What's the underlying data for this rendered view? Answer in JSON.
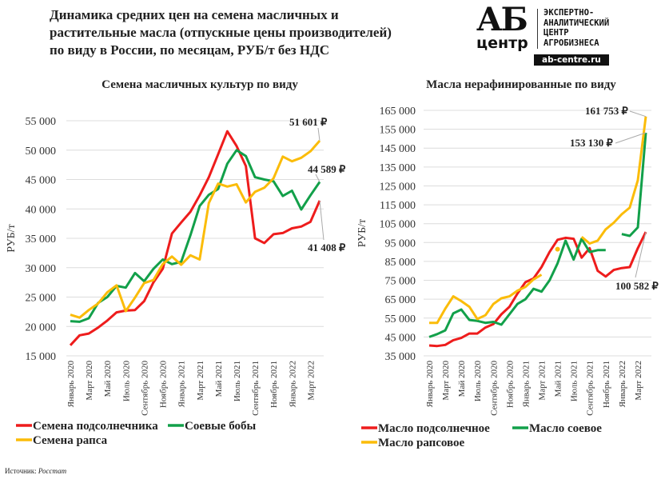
{
  "header": {
    "title_lines": [
      "Динамика средних цен на семена масличных и",
      "растительные масла (отпускные цены производителей)",
      "по виду в России, по месяцам, РУБ/т без НДС"
    ]
  },
  "logo": {
    "mark": "АБ",
    "word": "центр",
    "tagline": "ЭКСПЕРТНО-\nАНАЛИТИЧЕСКИЙ\nЦЕНТР\nАГРОБИЗНЕСА",
    "url": "ab-centre.ru"
  },
  "source": {
    "label": "Источник:",
    "value": "Росстат"
  },
  "chart_data": [
    {
      "type": "line",
      "title": "Семена масличных культур по виду",
      "ylabel": "РУБ/т",
      "xlabel": "",
      "ylim": [
        15000,
        55000
      ],
      "yticks": [
        15000,
        20000,
        25000,
        30000,
        35000,
        40000,
        45000,
        50000,
        55000
      ],
      "ytick_labels": [
        "15 000",
        "20 000",
        "25 000",
        "30 000",
        "35 000",
        "40 000",
        "45 000",
        "50 000",
        "55 000"
      ],
      "grid": true,
      "legend_position": "bottom",
      "months": 28,
      "x_tick_labels": [
        "Январь 2020",
        "Март 2020",
        "Май 2020",
        "Июль 2020",
        "Сентябрь 2020",
        "Ноябрь 2020",
        "Январь 2021",
        "Март 2021",
        "Май 2021",
        "Июль 2021",
        "Сентябрь 2021",
        "Ноябрь 2021",
        "Январь 2022",
        "Март 2022"
      ],
      "series": [
        {
          "name": "Семена подсолнечника",
          "color": "#ee1c1c",
          "values": [
            16800,
            18500,
            18800,
            19800,
            21000,
            22400,
            22700,
            22800,
            24300,
            27500,
            29800,
            35800,
            37700,
            39500,
            42300,
            45400,
            49300,
            53200,
            50700,
            47300,
            35000,
            34200,
            35700,
            35900,
            36700,
            37000,
            37800,
            41408
          ]
        },
        {
          "name": "Соевые бобы",
          "color": "#12a04a",
          "values": [
            20900,
            20800,
            21400,
            24000,
            25000,
            26900,
            26600,
            29100,
            27700,
            29800,
            31400,
            30600,
            31000,
            35500,
            40500,
            42400,
            43400,
            47700,
            50000,
            49000,
            45400,
            45000,
            44700,
            42200,
            43100,
            39900,
            42300,
            44589
          ]
        },
        {
          "name": "Семена рапса",
          "color": "#fbbc09",
          "values": [
            22000,
            21500,
            22800,
            23900,
            25800,
            27000,
            22600,
            24900,
            27400,
            27900,
            30600,
            31900,
            30500,
            32100,
            31400,
            41000,
            44300,
            43800,
            44200,
            41100,
            42900,
            43600,
            45200,
            48900,
            48100,
            48700,
            49800,
            51601
          ]
        }
      ],
      "annotations": [
        "51 601 ₽",
        "44 589 ₽",
        "41 408 ₽"
      ]
    },
    {
      "type": "line",
      "title": "Масла нерафинированные по виду",
      "ylabel": "РУБ/т",
      "xlabel": "",
      "ylim": [
        35000,
        165000
      ],
      "yticks": [
        35000,
        45000,
        55000,
        65000,
        75000,
        85000,
        95000,
        105000,
        115000,
        125000,
        135000,
        145000,
        155000,
        165000
      ],
      "ytick_labels": [
        "35 000",
        "45 000",
        "55 000",
        "65 000",
        "75 000",
        "85 000",
        "95 000",
        "105 000",
        "115 000",
        "125 000",
        "135 000",
        "145 000",
        "155 000",
        "165 000"
      ],
      "grid": true,
      "legend_position": "bottom",
      "months": 28,
      "x_tick_labels": [
        "Январь 2020",
        "Март 2020",
        "Май 2020",
        "Июль 2020",
        "Сентябрь 2020",
        "Ноябрь 2020",
        "Январь 2021",
        "Март 2021",
        "Май 2021",
        "Июль 2021",
        "Сентябрь 2021",
        "Ноябрь 2021",
        "Январь 2022",
        "Март 2022"
      ],
      "series": [
        {
          "name": "Масло подсолнечное",
          "color": "#ee1c1c",
          "values": [
            40500,
            40200,
            40800,
            43300,
            44500,
            46800,
            46800,
            50000,
            51800,
            57000,
            61000,
            68000,
            74000,
            76000,
            82000,
            90000,
            96500,
            97500,
            97000,
            87000,
            92000,
            80000,
            77000,
            80500,
            81500,
            82000,
            92000,
            100582
          ]
        },
        {
          "name": "Масло соевое",
          "color": "#12a04a",
          "values": [
            45000,
            46500,
            48500,
            57500,
            59500,
            54000,
            53500,
            52500,
            53000,
            51500,
            57000,
            62500,
            65000,
            70500,
            69000,
            75000,
            84000,
            96000,
            86000,
            97000,
            90000,
            91000,
            91000,
            null,
            99500,
            98500,
            103000,
            153130
          ]
        },
        {
          "name": "Масло рапсовое",
          "color": "#fbbc09",
          "values": [
            52500,
            52500,
            60000,
            66500,
            64000,
            61000,
            54500,
            56500,
            62500,
            65500,
            66500,
            69500,
            71500,
            75500,
            78000,
            null,
            91500,
            null,
            null,
            98000,
            94500,
            96000,
            102000,
            105500,
            110000,
            113500,
            128000,
            161753
          ]
        }
      ],
      "annotations": [
        "161 753 ₽",
        "153 130 ₽",
        "100 582 ₽"
      ]
    }
  ]
}
